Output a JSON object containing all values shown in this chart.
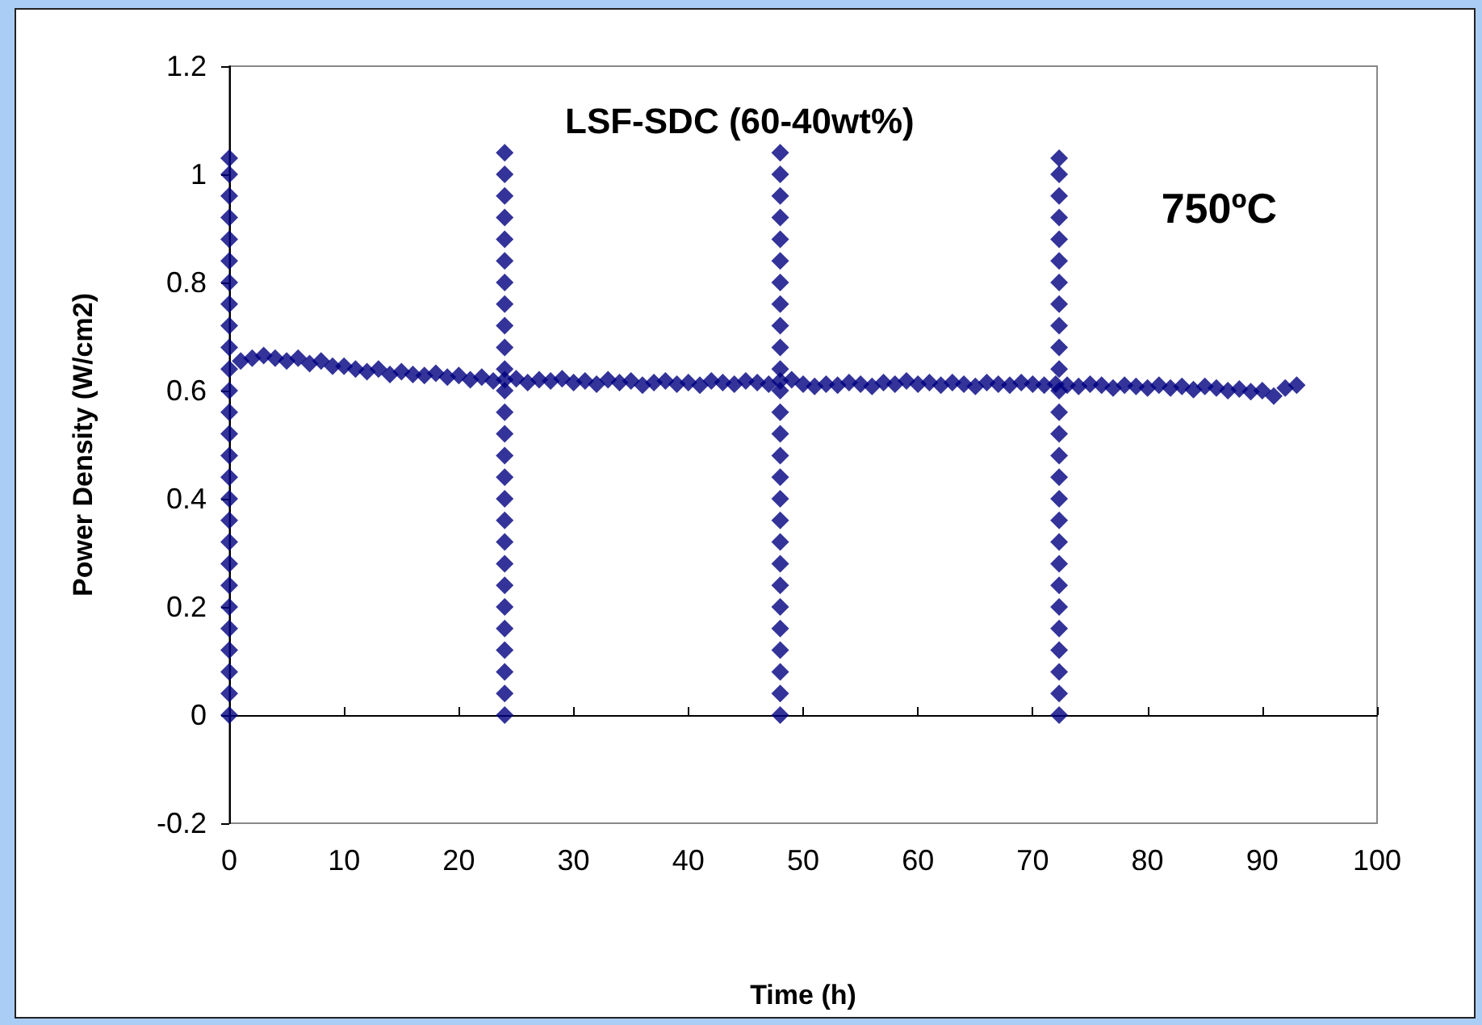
{
  "chart_data": {
    "type": "scatter",
    "title": "LSF-SDC (60-40wt%)",
    "xlabel": "Time (h)",
    "ylabel": "Power Density (W/cm2)",
    "annotations": [
      "750ºC"
    ],
    "marker": "diamond",
    "xlim": [
      0,
      100
    ],
    "xticks": [
      0,
      10,
      20,
      30,
      40,
      50,
      60,
      70,
      80,
      90,
      100
    ],
    "ylim": [
      -0.2,
      1.2
    ],
    "yticks": [
      -0.2,
      0,
      0.2,
      0.4,
      0.6,
      0.8,
      1,
      1.2
    ],
    "series": [
      {
        "color": "#000080",
        "x": [
          1,
          2,
          3,
          4,
          5,
          6,
          7,
          8,
          9,
          10,
          11,
          12,
          13,
          14,
          15,
          16,
          17,
          18,
          19,
          20,
          21,
          22,
          23,
          24,
          25,
          26,
          27,
          28,
          29,
          30,
          31,
          32,
          33,
          34,
          35,
          36,
          37,
          38,
          39,
          40,
          41,
          42,
          43,
          44,
          45,
          46,
          47,
          48,
          49,
          50,
          51,
          52,
          53,
          54,
          55,
          56,
          57,
          58,
          59,
          60,
          61,
          62,
          63,
          64,
          65,
          66,
          67,
          68,
          69,
          70,
          71,
          72,
          73,
          74,
          75,
          76,
          77,
          78,
          79,
          80,
          81,
          82,
          83,
          84,
          85,
          86,
          87,
          88,
          89,
          90,
          91,
          92,
          93
        ],
        "values": [
          0.655,
          0.66,
          0.665,
          0.66,
          0.655,
          0.66,
          0.65,
          0.655,
          0.645,
          0.645,
          0.64,
          0.635,
          0.64,
          0.63,
          0.635,
          0.63,
          0.628,
          0.632,
          0.625,
          0.628,
          0.62,
          0.625,
          0.618,
          0.62,
          0.622,
          0.615,
          0.62,
          0.618,
          0.622,
          0.615,
          0.618,
          0.612,
          0.62,
          0.615,
          0.618,
          0.61,
          0.615,
          0.618,
          0.612,
          0.615,
          0.61,
          0.618,
          0.615,
          0.612,
          0.618,
          0.615,
          0.612,
          0.618,
          0.62,
          0.612,
          0.608,
          0.612,
          0.61,
          0.615,
          0.612,
          0.608,
          0.615,
          0.612,
          0.618,
          0.612,
          0.615,
          0.61,
          0.615,
          0.612,
          0.608,
          0.615,
          0.612,
          0.61,
          0.615,
          0.612,
          0.61,
          0.612,
          0.61,
          0.608,
          0.612,
          0.61,
          0.605,
          0.61,
          0.608,
          0.605,
          0.61,
          0.605,
          0.608,
          0.602,
          0.608,
          0.605,
          0.6,
          0.603,
          0.598,
          0.6,
          0.59,
          0.605,
          0.61
        ]
      },
      {
        "color": "#000080",
        "x": [
          0,
          0,
          0,
          0,
          0,
          0,
          0,
          0,
          0,
          0,
          0,
          0,
          0,
          0,
          0,
          0,
          0,
          0,
          0,
          0,
          0,
          0,
          0,
          0,
          0,
          0,
          0
        ],
        "values": [
          0,
          0.04,
          0.08,
          0.12,
          0.16,
          0.2,
          0.24,
          0.28,
          0.32,
          0.36,
          0.4,
          0.44,
          0.48,
          0.52,
          0.56,
          0.6,
          0.64,
          0.68,
          0.72,
          0.76,
          0.8,
          0.84,
          0.88,
          0.92,
          0.96,
          1,
          1.03
        ]
      },
      {
        "color": "#000080",
        "x": [
          24,
          24,
          24,
          24,
          24,
          24,
          24,
          24,
          24,
          24,
          24,
          24,
          24,
          24,
          24,
          24,
          24,
          24,
          24,
          24,
          24,
          24,
          24,
          24,
          24,
          24,
          24
        ],
        "values": [
          0,
          0.04,
          0.08,
          0.12,
          0.16,
          0.2,
          0.24,
          0.28,
          0.32,
          0.36,
          0.4,
          0.44,
          0.48,
          0.52,
          0.56,
          0.6,
          0.64,
          0.68,
          0.72,
          0.76,
          0.8,
          0.84,
          0.88,
          0.92,
          0.96,
          1,
          1.04
        ]
      },
      {
        "color": "#000080",
        "x": [
          48,
          48,
          48,
          48,
          48,
          48,
          48,
          48,
          48,
          48,
          48,
          48,
          48,
          48,
          48,
          48,
          48,
          48,
          48,
          48,
          48,
          48,
          48,
          48,
          48,
          48,
          48
        ],
        "values": [
          0,
          0.04,
          0.08,
          0.12,
          0.16,
          0.2,
          0.24,
          0.28,
          0.32,
          0.36,
          0.4,
          0.44,
          0.48,
          0.52,
          0.56,
          0.6,
          0.64,
          0.68,
          0.72,
          0.76,
          0.8,
          0.84,
          0.88,
          0.92,
          0.96,
          1,
          1.04
        ]
      },
      {
        "color": "#000080",
        "x": [
          72.3,
          72.3,
          72.3,
          72.3,
          72.3,
          72.3,
          72.3,
          72.3,
          72.3,
          72.3,
          72.3,
          72.3,
          72.3,
          72.3,
          72.3,
          72.3,
          72.3,
          72.3,
          72.3,
          72.3,
          72.3,
          72.3,
          72.3,
          72.3,
          72.3,
          72.3,
          72.3
        ],
        "values": [
          0,
          0.04,
          0.08,
          0.12,
          0.16,
          0.2,
          0.24,
          0.28,
          0.32,
          0.36,
          0.4,
          0.44,
          0.48,
          0.52,
          0.56,
          0.6,
          0.64,
          0.68,
          0.72,
          0.76,
          0.8,
          0.84,
          0.88,
          0.92,
          0.96,
          1,
          1.03
        ]
      }
    ]
  }
}
